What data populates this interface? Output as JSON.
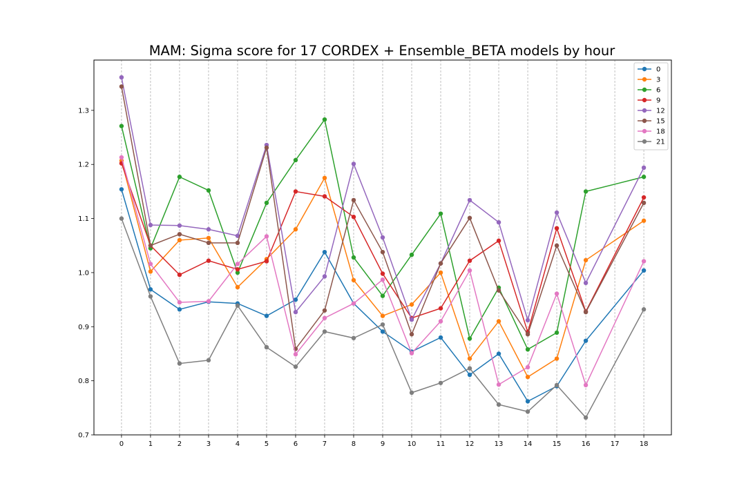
{
  "chart_data": {
    "type": "line",
    "title": "MAM: Sigma score for 17 CORDEX + Ensemble_BETA models by hour",
    "xlabel": "",
    "ylabel": "",
    "x": [
      0,
      1,
      2,
      3,
      4,
      5,
      6,
      7,
      8,
      9,
      10,
      11,
      12,
      13,
      14,
      15,
      16,
      18
    ],
    "x_ticks": [
      0,
      1,
      2,
      3,
      4,
      5,
      6,
      7,
      8,
      9,
      10,
      11,
      12,
      13,
      14,
      15,
      16,
      17,
      18
    ],
    "y_ticks": [
      0.7,
      0.8,
      0.9,
      1.0,
      1.1,
      1.2,
      1.3
    ],
    "xlim": [
      -0.95,
      18.95
    ],
    "ylim": [
      0.7,
      1.393
    ],
    "grid": "vertical dashed",
    "legend_position": "top-right",
    "series": [
      {
        "name": "0",
        "color": "#1f77b4",
        "values": [
          1.154,
          0.969,
          0.932,
          0.946,
          0.943,
          0.92,
          0.95,
          1.038,
          0.943,
          0.891,
          0.854,
          0.88,
          0.811,
          0.85,
          0.762,
          0.79,
          0.874,
          1.004
        ]
      },
      {
        "name": "3",
        "color": "#ff7f0e",
        "values": [
          1.207,
          1.002,
          1.06,
          1.064,
          0.973,
          1.025,
          1.08,
          1.175,
          0.986,
          0.92,
          0.941,
          1.0,
          0.841,
          0.91,
          0.807,
          0.841,
          1.023,
          1.096
        ]
      },
      {
        "name": "6",
        "color": "#2ca02c",
        "values": [
          1.271,
          1.045,
          1.177,
          1.152,
          1.0,
          1.129,
          1.208,
          1.283,
          1.028,
          0.957,
          1.033,
          1.109,
          0.878,
          0.972,
          0.858,
          0.889,
          1.15,
          1.177
        ]
      },
      {
        "name": "9",
        "color": "#d62728",
        "values": [
          1.202,
          1.05,
          0.996,
          1.022,
          1.006,
          1.021,
          1.15,
          1.141,
          1.103,
          0.998,
          0.916,
          0.934,
          1.022,
          1.059,
          0.89,
          1.082,
          0.928,
          1.139
        ]
      },
      {
        "name": "12",
        "color": "#9467bd",
        "values": [
          1.361,
          1.088,
          1.087,
          1.08,
          1.068,
          1.236,
          0.927,
          0.993,
          1.201,
          1.065,
          0.913,
          1.017,
          1.134,
          1.093,
          0.912,
          1.111,
          0.981,
          1.194
        ]
      },
      {
        "name": "15",
        "color": "#8c564b",
        "values": [
          1.344,
          1.05,
          1.071,
          1.055,
          1.055,
          1.231,
          0.859,
          0.93,
          1.134,
          1.038,
          0.886,
          1.017,
          1.101,
          0.967,
          0.886,
          1.05,
          0.927,
          1.129
        ]
      },
      {
        "name": "18",
        "color": "#e377c2",
        "values": [
          1.213,
          1.016,
          0.945,
          0.947,
          1.016,
          1.067,
          0.849,
          0.916,
          0.943,
          0.987,
          0.851,
          0.91,
          1.004,
          0.793,
          0.825,
          0.961,
          0.792,
          1.021
        ]
      },
      {
        "name": "21",
        "color": "#7f7f7f",
        "values": [
          1.1,
          0.956,
          0.832,
          0.838,
          0.939,
          0.862,
          0.826,
          0.891,
          0.879,
          0.904,
          0.778,
          0.796,
          0.823,
          0.756,
          0.743,
          0.792,
          0.732,
          0.932
        ]
      }
    ]
  }
}
